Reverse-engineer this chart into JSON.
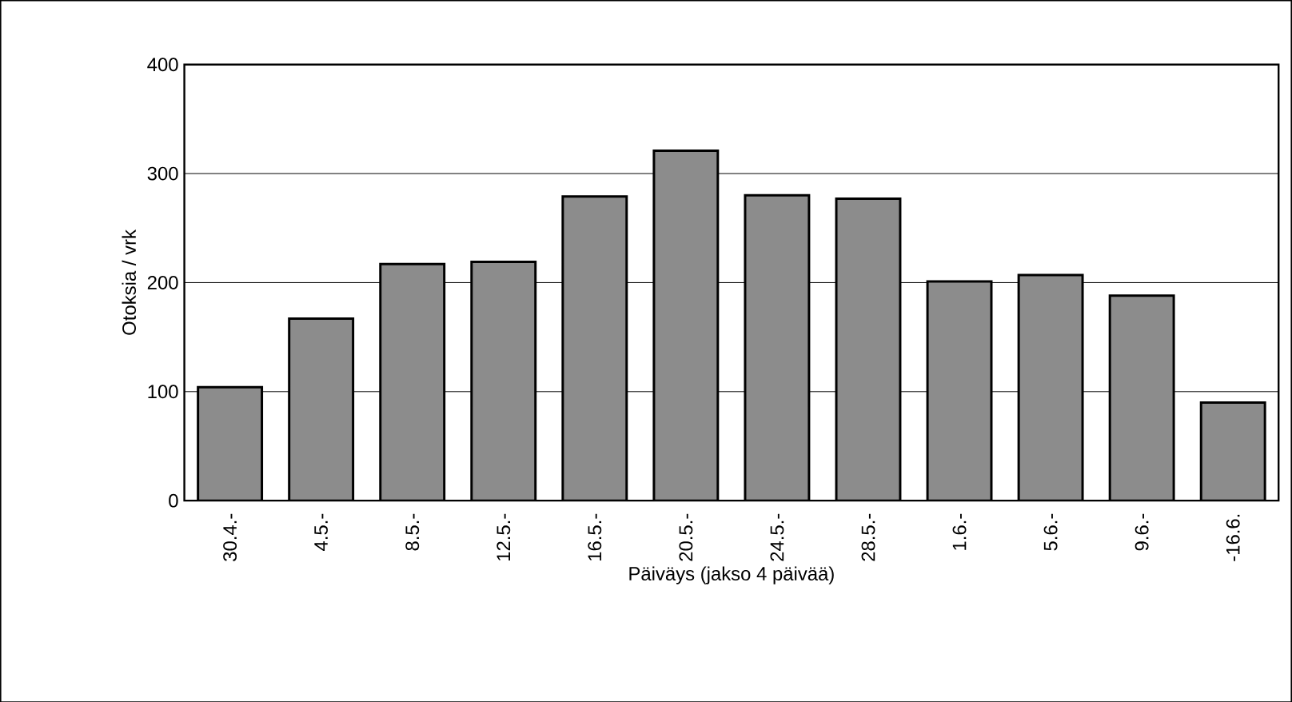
{
  "chart_data": {
    "type": "bar",
    "xlabel": "Päiväys (jakso 4 päivää)",
    "ylabel": "Otoksia / vrk",
    "categories": [
      "30.4.-",
      "4.5.-",
      "8.5.-",
      "12.5.-",
      "16.5.-",
      "20.5.-",
      "24.5.-",
      "28.5.-",
      "1.6.-",
      "5.6.-",
      "9.6.-",
      "-16.6."
    ],
    "values": [
      104,
      167,
      217,
      219,
      279,
      321,
      280,
      277,
      201,
      207,
      188,
      90
    ],
    "color": "#8c8c8c",
    "ylim": [
      0,
      400
    ],
    "yticks": [
      0,
      100,
      200,
      300,
      400
    ],
    "grid": "y"
  }
}
